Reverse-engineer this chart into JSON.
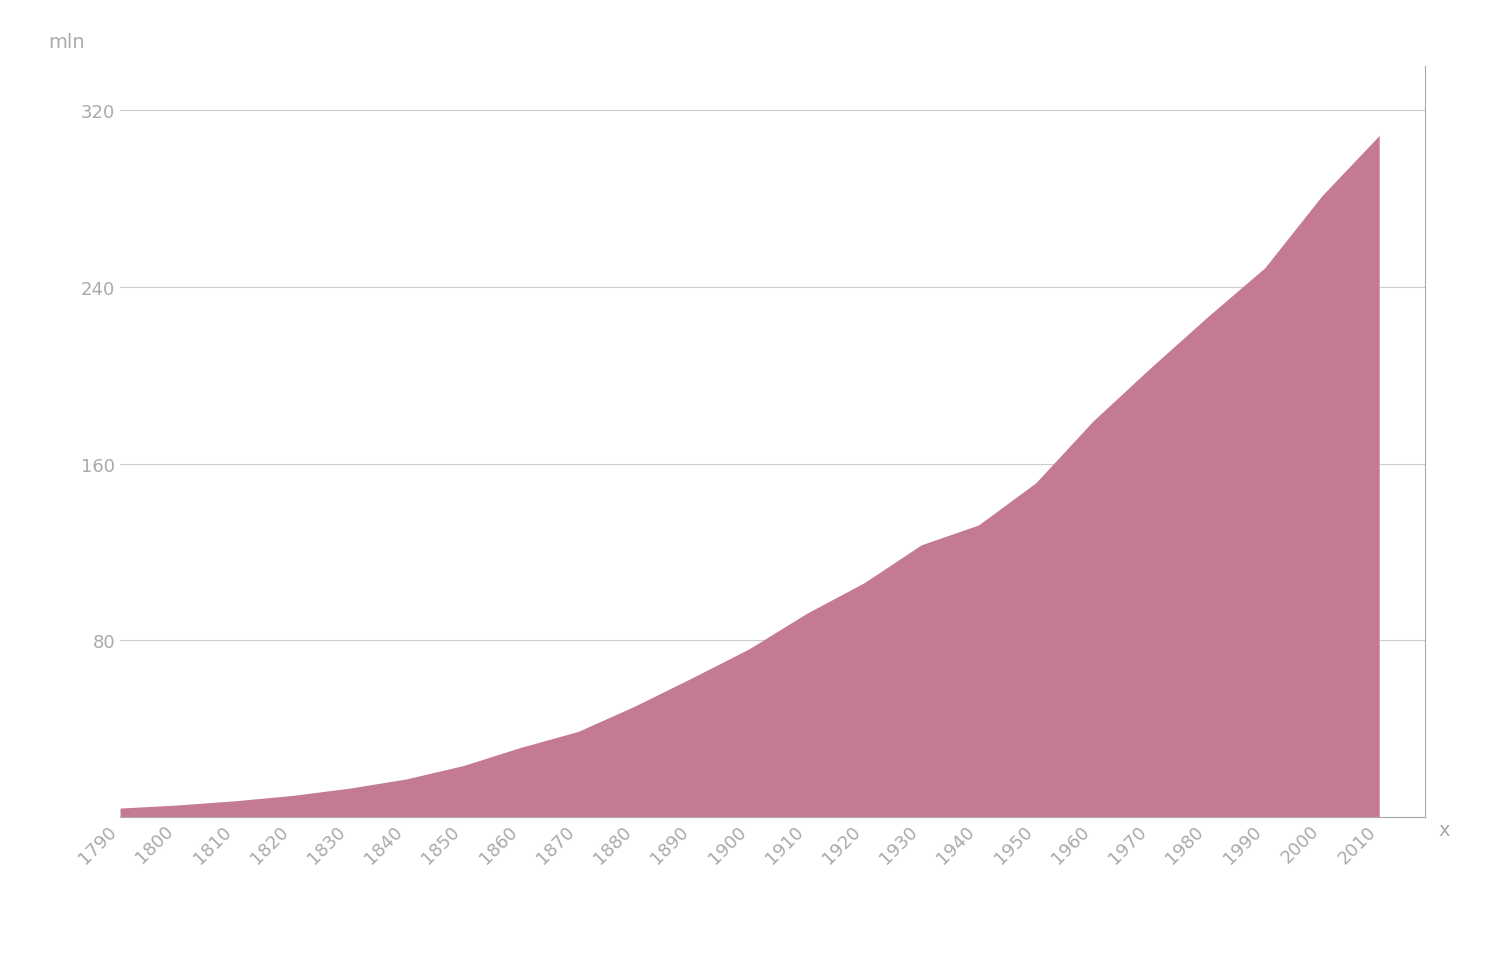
{
  "years": [
    1790,
    1800,
    1810,
    1820,
    1830,
    1840,
    1850,
    1860,
    1870,
    1880,
    1890,
    1900,
    1910,
    1920,
    1930,
    1940,
    1950,
    1960,
    1970,
    1980,
    1990,
    2000,
    2010
  ],
  "population": [
    3.9,
    5.3,
    7.2,
    9.6,
    12.9,
    17.1,
    23.2,
    31.4,
    38.6,
    50.2,
    63.0,
    76.2,
    92.2,
    106.0,
    123.2,
    132.2,
    151.3,
    179.3,
    203.3,
    226.5,
    248.7,
    281.4,
    308.7
  ],
  "area_color": "#c47a95",
  "area_alpha": 1.0,
  "line_color": "#c47a95",
  "background_color": "#ffffff",
  "grid_color": "#cccccc",
  "axis_color": "#aaaaaa",
  "tick_color": "#aaaaaa",
  "ylabel": "mln",
  "xlabel": "x",
  "yticks": [
    0,
    80,
    160,
    240,
    320
  ],
  "ylim": [
    0,
    340
  ],
  "xlim": [
    1790,
    2018
  ],
  "label_fontsize": 14,
  "tick_fontsize": 13
}
